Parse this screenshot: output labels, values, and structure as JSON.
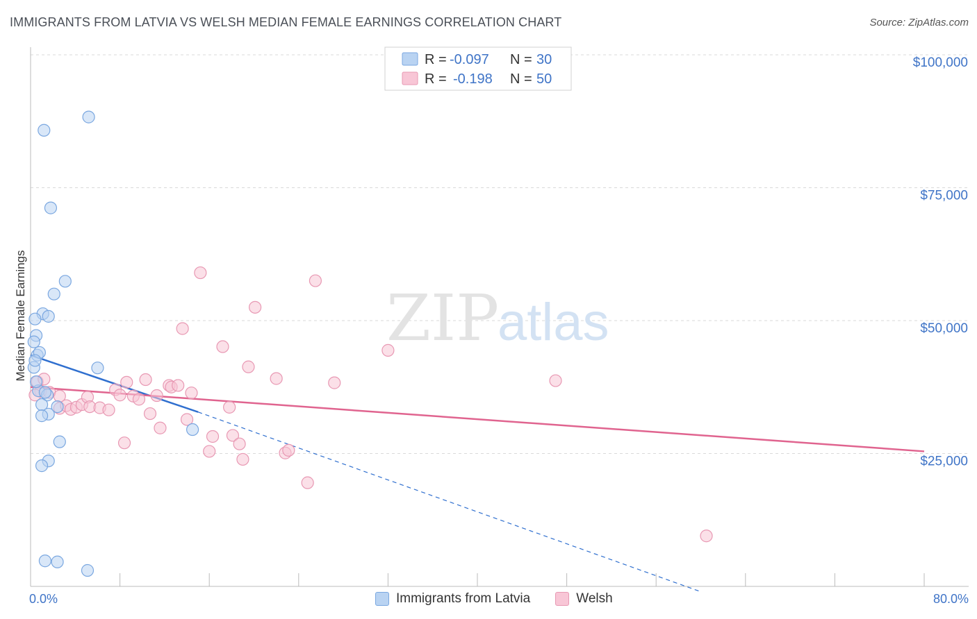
{
  "title": "IMMIGRANTS FROM LATVIA VS WELSH MEDIAN FEMALE EARNINGS CORRELATION CHART",
  "source": "Source: ZipAtlas.com",
  "watermark": {
    "zip": "ZIP",
    "atlas": "atlas"
  },
  "colors": {
    "blue_fill": "#b9d3f2",
    "blue_stroke": "#7aa7e0",
    "blue_line": "#2f6fcf",
    "pink_fill": "#f8c6d6",
    "pink_stroke": "#e898b3",
    "pink_line": "#e0648f",
    "axis_text": "#3f74c7",
    "grid": "#d9d9d9"
  },
  "legend": {
    "r_label": "R =",
    "n_label": "N =",
    "rows": [
      {
        "r": "-0.097",
        "n": "30"
      },
      {
        "r": "-0.198",
        "n": "50"
      }
    ]
  },
  "chart_data": {
    "type": "scatter",
    "title": "IMMIGRANTS FROM LATVIA VS WELSH MEDIAN FEMALE EARNINGS CORRELATION CHART",
    "xlabel": "",
    "ylabel": "Median Female Earnings",
    "xlim": [
      0,
      80
    ],
    "ylim": [
      0,
      100000
    ],
    "x_tick_labels": [
      "0.0%",
      "80.0%"
    ],
    "y_ticks": [
      25000,
      50000,
      75000,
      100000
    ],
    "y_tick_labels": [
      "$25,000",
      "$50,000",
      "$75,000",
      "$100,000"
    ],
    "series": [
      {
        "name": "Immigrants from Latvia",
        "r": -0.097,
        "n": 30,
        "trend": {
          "x0": 0,
          "y0": 43500,
          "x1": 15,
          "y1": 32800,
          "dash_to_x": 60,
          "dash_to_y": -1000
        },
        "points": [
          [
            1.2,
            85800
          ],
          [
            5.2,
            88300
          ],
          [
            1.8,
            71200
          ],
          [
            3.1,
            57400
          ],
          [
            2.1,
            55000
          ],
          [
            1.1,
            51300
          ],
          [
            0.4,
            50300
          ],
          [
            0.5,
            47200
          ],
          [
            0.3,
            46000
          ],
          [
            0.6,
            43500
          ],
          [
            0.3,
            41200
          ],
          [
            6.0,
            41100
          ],
          [
            0.7,
            36800
          ],
          [
            1.5,
            36000
          ],
          [
            1.0,
            34200
          ],
          [
            2.4,
            33800
          ],
          [
            1.6,
            32400
          ],
          [
            1.0,
            32100
          ],
          [
            14.5,
            29500
          ],
          [
            2.6,
            27200
          ],
          [
            1.6,
            23600
          ],
          [
            1.0,
            22700
          ],
          [
            1.3,
            4800
          ],
          [
            2.4,
            4600
          ],
          [
            5.1,
            3000
          ],
          [
            0.8,
            44000
          ],
          [
            0.5,
            38500
          ],
          [
            1.3,
            36500
          ],
          [
            0.4,
            42500
          ],
          [
            1.6,
            50800
          ]
        ]
      },
      {
        "name": "Welsh",
        "r": -0.198,
        "n": 50,
        "trend": {
          "x0": 0,
          "y0": 37500,
          "x1": 80,
          "y1": 25400
        },
        "points": [
          [
            0.6,
            38500
          ],
          [
            1.2,
            39000
          ],
          [
            0.9,
            36700
          ],
          [
            1.7,
            36500
          ],
          [
            2.6,
            35800
          ],
          [
            2.6,
            33500
          ],
          [
            3.2,
            34000
          ],
          [
            3.6,
            33300
          ],
          [
            4.1,
            33700
          ],
          [
            4.6,
            34200
          ],
          [
            5.1,
            35600
          ],
          [
            5.3,
            33800
          ],
          [
            6.2,
            33600
          ],
          [
            7.0,
            33200
          ],
          [
            7.6,
            37000
          ],
          [
            8.0,
            36000
          ],
          [
            8.6,
            38400
          ],
          [
            9.2,
            35800
          ],
          [
            9.7,
            35200
          ],
          [
            10.3,
            38900
          ],
          [
            10.7,
            32500
          ],
          [
            11.3,
            35900
          ],
          [
            11.6,
            29800
          ],
          [
            12.4,
            37800
          ],
          [
            12.6,
            37500
          ],
          [
            13.2,
            37800
          ],
          [
            14.4,
            36400
          ],
          [
            14.0,
            31400
          ],
          [
            15.2,
            59000
          ],
          [
            13.6,
            48500
          ],
          [
            16.0,
            25400
          ],
          [
            16.3,
            28200
          ],
          [
            17.2,
            45100
          ],
          [
            17.8,
            33700
          ],
          [
            18.1,
            28400
          ],
          [
            18.7,
            26800
          ],
          [
            19.0,
            23900
          ],
          [
            19.5,
            41300
          ],
          [
            20.1,
            52500
          ],
          [
            22.0,
            39100
          ],
          [
            22.8,
            25100
          ],
          [
            23.1,
            25600
          ],
          [
            24.8,
            19500
          ],
          [
            25.5,
            57500
          ],
          [
            27.2,
            38300
          ],
          [
            32.0,
            44400
          ],
          [
            47.0,
            38700
          ],
          [
            60.5,
            9500
          ],
          [
            8.4,
            27000
          ],
          [
            0.4,
            36000
          ]
        ]
      }
    ]
  },
  "bottom_legend": [
    {
      "label": "Immigrants from Latvia"
    },
    {
      "label": "Welsh"
    }
  ]
}
